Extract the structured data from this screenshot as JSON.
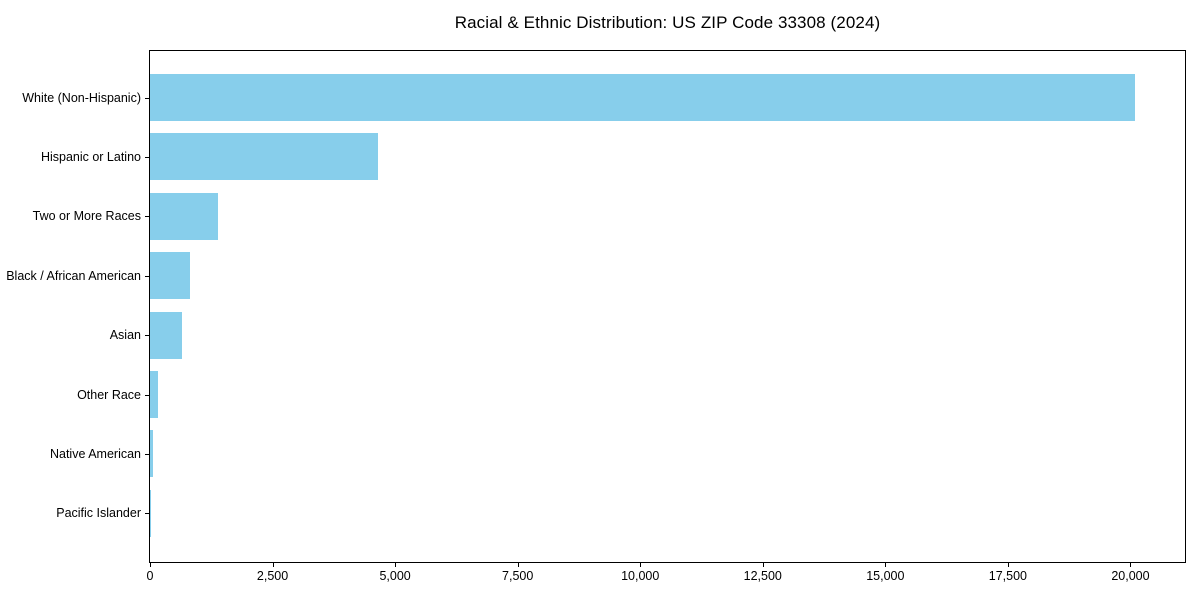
{
  "chart_data": {
    "type": "bar",
    "orientation": "horizontal",
    "title": "Racial & Ethnic Distribution: US ZIP Code 33308 (2024)",
    "categories": [
      "White (Non-Hispanic)",
      "Hispanic or Latino",
      "Two or More Races",
      "Black / African American",
      "Asian",
      "Other Race",
      "Native American",
      "Pacific Islander"
    ],
    "values": [
      20090,
      4650,
      1390,
      810,
      645,
      170,
      60,
      15
    ],
    "xlabel": "",
    "ylabel": "",
    "xlim": [
      0,
      21113
    ],
    "xticks": [
      0,
      2500,
      5000,
      7500,
      10000,
      12500,
      15000,
      17500,
      20000
    ],
    "xtick_labels": [
      "0",
      "2,500",
      "5,000",
      "7,500",
      "10,000",
      "12,500",
      "15,000",
      "17,500",
      "20,000"
    ],
    "bar_color": "#87CEEB",
    "axis_color": "#000000",
    "background_color": "#ffffff",
    "grid": false,
    "legend": "none"
  }
}
